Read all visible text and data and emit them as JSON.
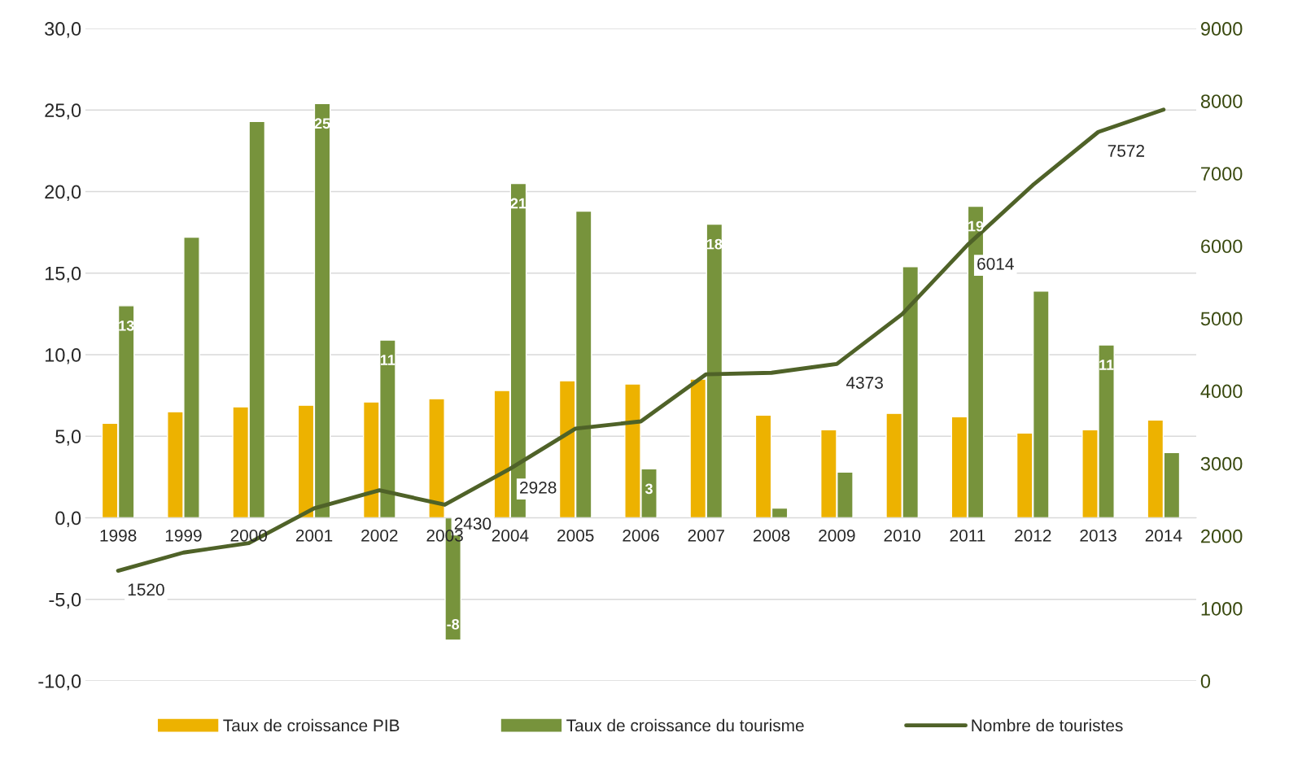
{
  "chart_data": {
    "type": "bar",
    "categories": [
      "1998",
      "1999",
      "2000",
      "2001",
      "2002",
      "2003",
      "2004",
      "2005",
      "2006",
      "2007",
      "2008",
      "2009",
      "2010",
      "2011",
      "2012",
      "2013",
      "2014"
    ],
    "series": [
      {
        "name": "Taux de croissance PIB",
        "color": "#edb200",
        "values": [
          5.8,
          6.5,
          6.8,
          6.9,
          7.1,
          7.3,
          7.8,
          8.4,
          8.2,
          8.5,
          6.3,
          5.4,
          6.4,
          6.2,
          5.2,
          5.4,
          6.0
        ]
      },
      {
        "name": "Taux de croissance du tourisme",
        "color": "#77933c",
        "values": [
          13.0,
          17.2,
          24.3,
          25.4,
          10.9,
          -7.5,
          20.5,
          18.8,
          3.0,
          18.0,
          0.6,
          2.8,
          15.4,
          19.1,
          13.9,
          10.6,
          4.0
        ],
        "value_labels": [
          "13",
          null,
          null,
          "25",
          "11",
          "-8",
          "21",
          null,
          "3",
          "18",
          null,
          null,
          null,
          "19",
          null,
          "11",
          null
        ]
      },
      {
        "name": "Nombre de touristes",
        "type": "line",
        "axis": "y2",
        "color": "#4f6228",
        "values": [
          1520,
          1770,
          1900,
          2380,
          2630,
          2430,
          2928,
          3480,
          3580,
          4230,
          4250,
          4373,
          5060,
          6014,
          6840,
          7572,
          7880
        ],
        "value_labels": [
          "1520",
          null,
          null,
          null,
          null,
          "2430",
          "2928",
          null,
          null,
          null,
          null,
          "4373",
          null,
          "6014",
          null,
          "7572",
          null
        ]
      }
    ],
    "ylim": [
      -10,
      30
    ],
    "yticks": [
      {
        "value": -10,
        "label": "-10,0"
      },
      {
        "value": -5,
        "label": "-5,0"
      },
      {
        "value": 0,
        "label": "0,0"
      },
      {
        "value": 5,
        "label": "5,0"
      },
      {
        "value": 10,
        "label": "10,0"
      },
      {
        "value": 15,
        "label": "15,0"
      },
      {
        "value": 20,
        "label": "20,0"
      },
      {
        "value": 25,
        "label": "25,0"
      },
      {
        "value": 30,
        "label": "30,0"
      }
    ],
    "y2lim": [
      0,
      9000
    ],
    "y2ticks": [
      0,
      1000,
      2000,
      3000,
      4000,
      5000,
      6000,
      7000,
      8000,
      9000
    ],
    "grid": "y",
    "legend": "bottom",
    "line_style": "solid",
    "marker": "none"
  }
}
